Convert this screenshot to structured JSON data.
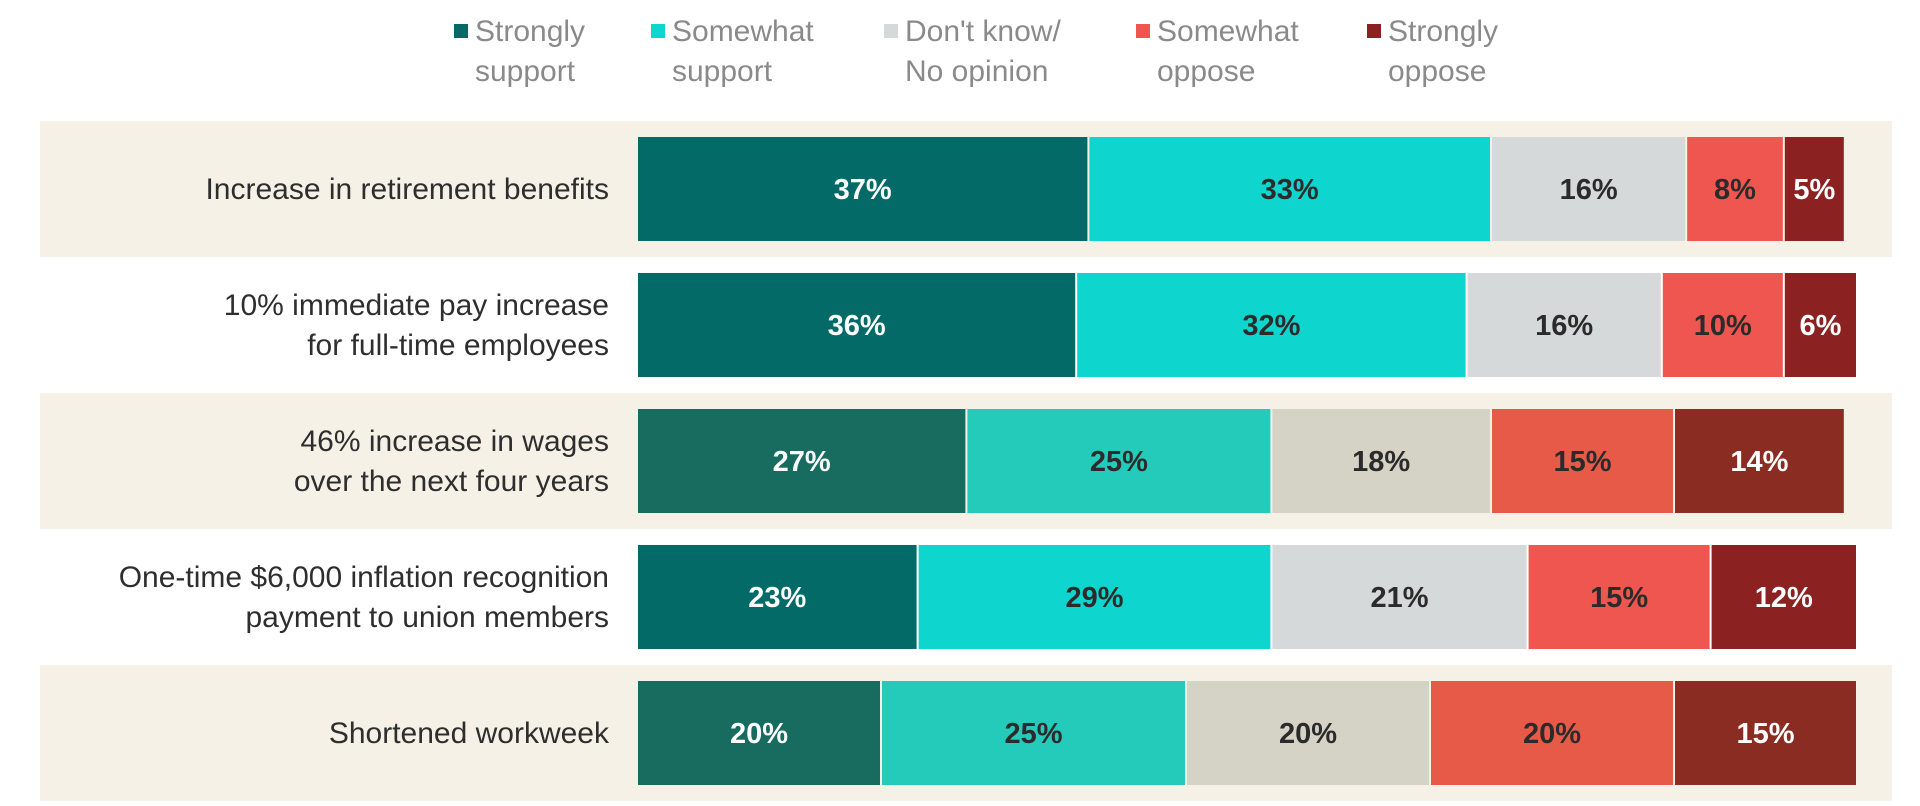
{
  "chart_data": {
    "type": "bar",
    "orientation": "horizontal",
    "stacked": true,
    "legend_position": "top",
    "categories": [
      [
        "Increase in retirement benefits"
      ],
      [
        "10% immediate pay increase",
        "for full-time employees"
      ],
      [
        "46% increase in wages",
        "over the next four years"
      ],
      [
        "One-time $6,000 inflation recognition",
        "payment to union members"
      ],
      [
        "Shortened workweek"
      ]
    ],
    "series": [
      {
        "name": [
          "Strongly",
          "support"
        ],
        "color": "#046a67",
        "alt_color": "#176b5f",
        "label_color": "#ffffff",
        "values": [
          37,
          36,
          27,
          23,
          20
        ],
        "labels": [
          "37%",
          "36%",
          "27%",
          "23%",
          "20%"
        ]
      },
      {
        "name": [
          "Somewhat",
          "support"
        ],
        "color": "#0ed6cf",
        "alt_color": "#24cbba",
        "label_color": "#2b2b2b",
        "values": [
          33,
          32,
          25,
          29,
          25
        ],
        "labels": [
          "33%",
          "32%",
          "25%",
          "29%",
          "25%"
        ]
      },
      {
        "name": [
          "Don't know/",
          "No opinion"
        ],
        "color": "#d6d9d9",
        "alt_color": "#d5d2c6",
        "label_color": "#2b2b2b",
        "values": [
          16,
          16,
          18,
          21,
          20
        ],
        "labels": [
          "16%",
          "16%",
          "18%",
          "21%",
          "20%"
        ]
      },
      {
        "name": [
          "Somewhat",
          "oppose"
        ],
        "color": "#ef5650",
        "alt_color": "#e85a48",
        "label_color": "#2b2b2b",
        "values": [
          8,
          10,
          15,
          15,
          20
        ],
        "labels": [
          "8%",
          "10%",
          "15%",
          "15%",
          "20%"
        ]
      },
      {
        "name": [
          "Strongly",
          "oppose"
        ],
        "color": "#8b2121",
        "alt_color": "#8b2c22",
        "label_color": "#ffffff",
        "values": [
          5,
          6,
          14,
          12,
          15
        ],
        "labels": [
          "5%",
          "6%",
          "14%",
          "12%",
          "15%"
        ]
      }
    ],
    "alt_rows": [
      2,
      4
    ],
    "band_color": "#f5f1e6",
    "xlim": [
      0,
      100
    ],
    "grid": false
  }
}
